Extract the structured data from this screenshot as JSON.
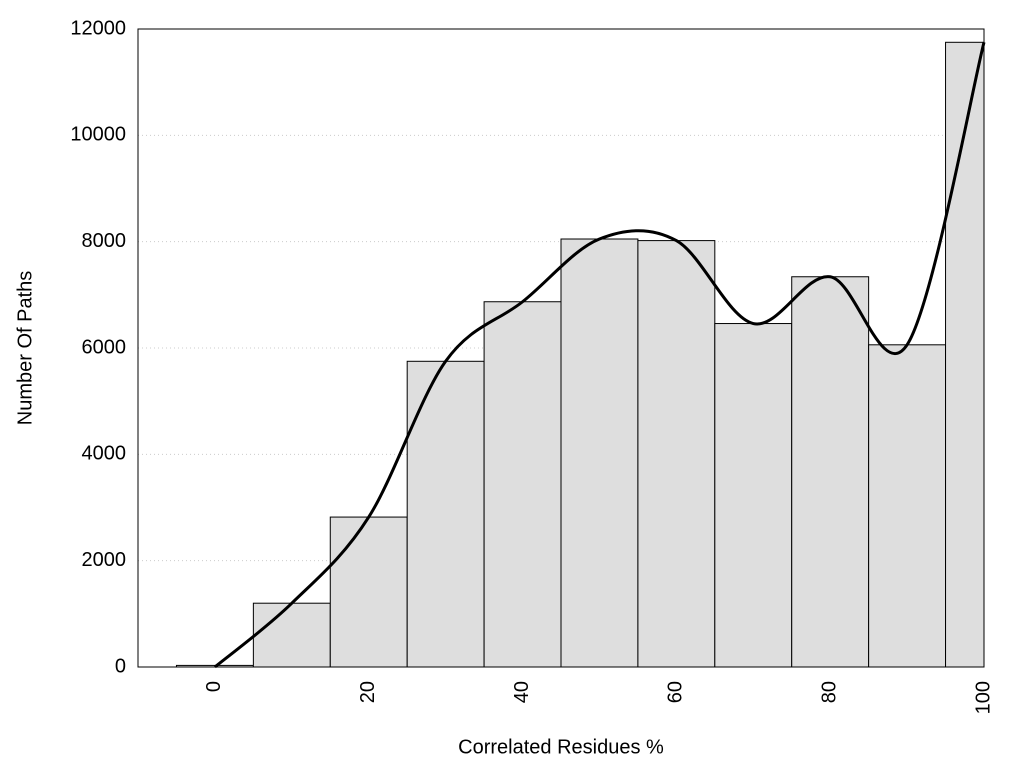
{
  "chart_data": {
    "type": "histogram",
    "xlabel": "Correlated Residues %",
    "ylabel": "Number Of Paths",
    "bins": [
      -5,
      5,
      15,
      25,
      35,
      45,
      55,
      65,
      75,
      85,
      95,
      100
    ],
    "values": [
      30,
      1200,
      2820,
      5750,
      6870,
      8050,
      8020,
      6460,
      7340,
      6060,
      11750
    ],
    "color": "#dedede",
    "curve": {
      "x": [
        0,
        10,
        20,
        30,
        40,
        50,
        60,
        70,
        80,
        90,
        100
      ],
      "values": [
        0,
        1200,
        2820,
        5750,
        6870,
        8050,
        8020,
        6460,
        7340,
        6060,
        11750
      ],
      "color": "#000000"
    },
    "xlim": [
      -10,
      100
    ],
    "xticks": [
      0,
      20,
      40,
      60,
      80,
      100
    ],
    "ylim": [
      0,
      12000
    ],
    "yticks": [
      0,
      2000,
      4000,
      6000,
      8000,
      10000,
      12000
    ],
    "grid": true
  }
}
